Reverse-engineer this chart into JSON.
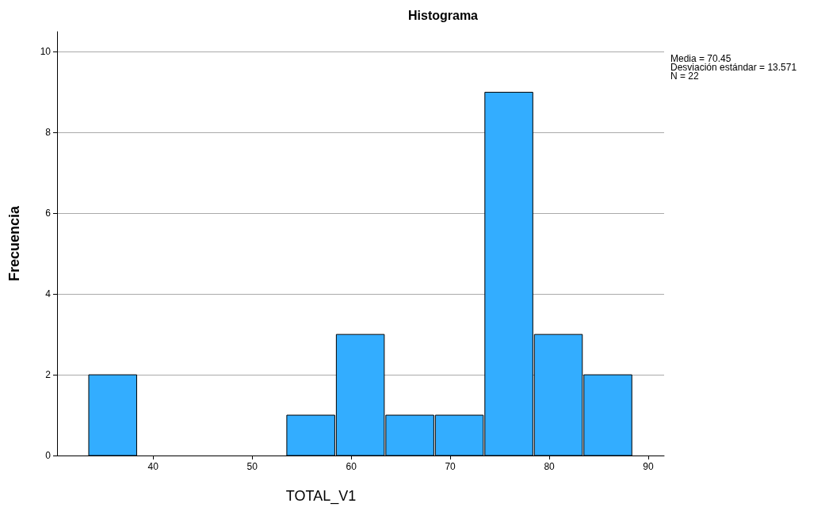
{
  "chart_data": {
    "type": "histogram",
    "title": "Histograma",
    "xlabel": "TOTAL_V1",
    "ylabel": "Frecuencia",
    "bins": [
      33.5,
      38.5,
      43.5,
      48.5,
      53.5,
      58.5,
      63.5,
      68.5,
      73.5,
      78.5,
      83.5,
      88.5
    ],
    "values": [
      2,
      0,
      0,
      0,
      1,
      3,
      1,
      1,
      9,
      3,
      2
    ],
    "color": "#33adff",
    "xlim": [
      30.3,
      91.6
    ],
    "xticks": [
      40,
      50,
      60,
      70,
      80,
      90
    ],
    "ylim": [
      0,
      10.5
    ],
    "yticks": [
      0,
      2,
      4,
      6,
      8,
      10
    ],
    "grid": "y",
    "annotations": [
      "Media = 70.45",
      "Desviación estándar = 13.571",
      "N = 22"
    ]
  }
}
